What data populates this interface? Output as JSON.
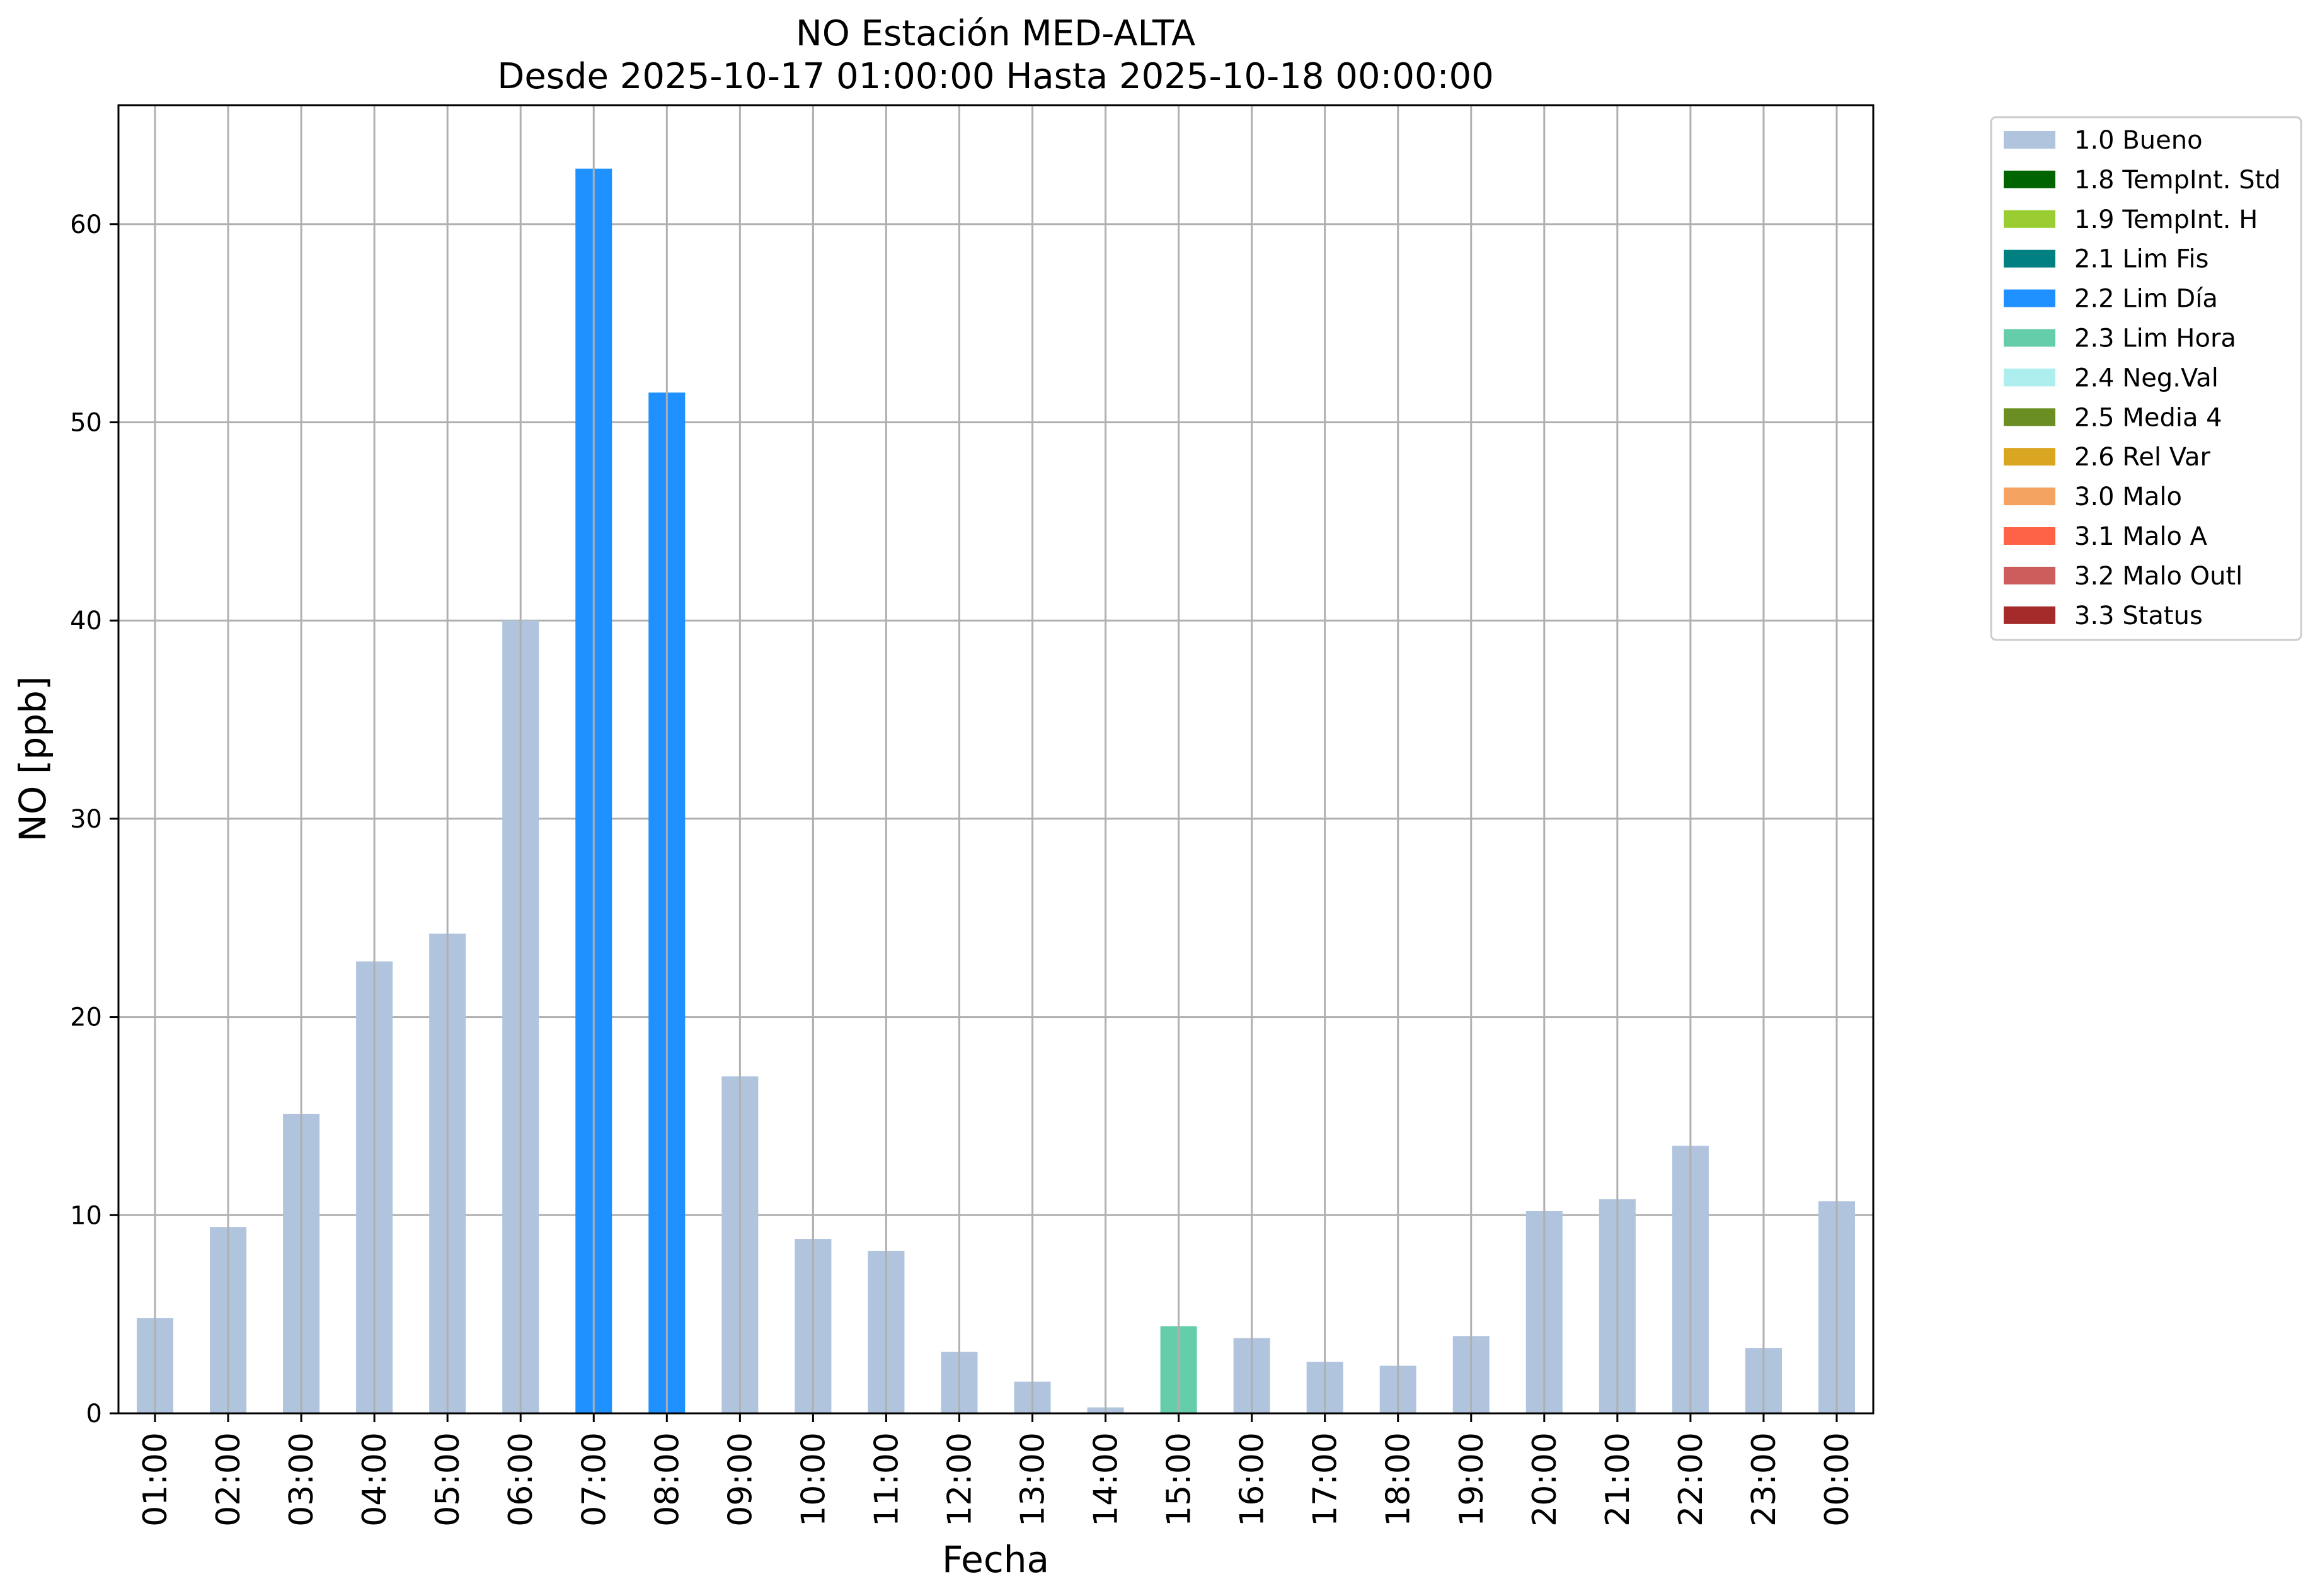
{
  "chart_data": {
    "type": "bar",
    "title": "NO Estación MED-ALTA",
    "subtitle": "Desde 2025-10-17 01:00:00 Hasta 2025-10-18 00:00:00",
    "xlabel": "Fecha",
    "ylabel": "NO [ppb]",
    "ylim": [
      0,
      66
    ],
    "yticks": [
      0,
      10,
      20,
      30,
      40,
      50,
      60
    ],
    "grid": true,
    "legend_position": "outside-top-right",
    "categories": [
      "01:00",
      "02:00",
      "03:00",
      "04:00",
      "05:00",
      "06:00",
      "07:00",
      "08:00",
      "09:00",
      "10:00",
      "11:00",
      "12:00",
      "13:00",
      "14:00",
      "15:00",
      "16:00",
      "17:00",
      "18:00",
      "19:00",
      "20:00",
      "21:00",
      "22:00",
      "23:00",
      "00:00"
    ],
    "values": [
      4.8,
      9.4,
      15.1,
      22.8,
      24.2,
      40.0,
      62.8,
      51.5,
      17.0,
      8.8,
      8.2,
      3.1,
      1.6,
      0.3,
      4.4,
      3.8,
      2.6,
      2.4,
      3.9,
      10.2,
      10.8,
      13.5,
      3.3,
      10.7
    ],
    "flags": [
      "1.0 Bueno",
      "1.0 Bueno",
      "1.0 Bueno",
      "1.0 Bueno",
      "1.0 Bueno",
      "1.0 Bueno",
      "2.2 Lim Día",
      "2.2 Lim Día",
      "1.0 Bueno",
      "1.0 Bueno",
      "1.0 Bueno",
      "1.0 Bueno",
      "1.0 Bueno",
      "1.0 Bueno",
      "2.3 Lim Hora",
      "1.0 Bueno",
      "1.0 Bueno",
      "1.0 Bueno",
      "1.0 Bueno",
      "1.0 Bueno",
      "1.0 Bueno",
      "1.0 Bueno",
      "1.0 Bueno",
      "1.0 Bueno"
    ],
    "legend": [
      {
        "label": "1.0 Bueno",
        "color": "#b0c4de"
      },
      {
        "label": "1.8 TempInt. Std",
        "color": "#006400"
      },
      {
        "label": "1.9 TempInt. H",
        "color": "#9acd32"
      },
      {
        "label": "2.1 Lim Fis",
        "color": "#008080"
      },
      {
        "label": "2.2 Lim Día",
        "color": "#1e90ff"
      },
      {
        "label": "2.3 Lim Hora",
        "color": "#66cdaa"
      },
      {
        "label": "2.4 Neg.Val",
        "color": "#afeeee"
      },
      {
        "label": "2.5 Media 4",
        "color": "#6b8e23"
      },
      {
        "label": "2.6 Rel Var",
        "color": "#daa520"
      },
      {
        "label": "3.0 Malo",
        "color": "#f4a460"
      },
      {
        "label": "3.1 Malo A",
        "color": "#ff6347"
      },
      {
        "label": "3.2 Malo Outl",
        "color": "#cd5c5c"
      },
      {
        "label": "3.3 Status",
        "color": "#a52a2a"
      }
    ]
  }
}
